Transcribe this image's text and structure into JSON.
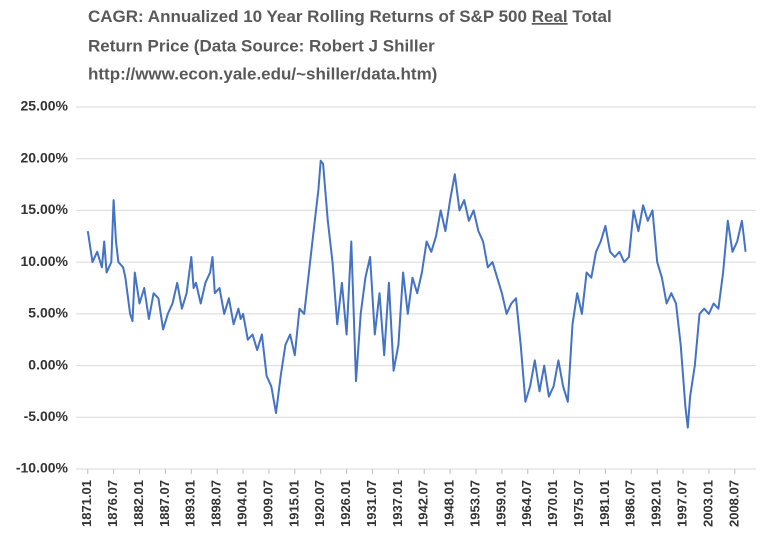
{
  "chart_data": {
    "type": "line",
    "title": [
      "CAGR: Annualized 10 Year Rolling Returns of S&P 500",
      "Real",
      "Total",
      "Return Price (Data Source: Robert J Shiller",
      "http://www.econ.yale.edu/~shiller/data.htm)"
    ],
    "x": [
      1871,
      1872,
      1873,
      1874,
      1874.5,
      1875,
      1876,
      1876.5,
      1877,
      1877.5,
      1878.5,
      1879,
      1880,
      1880.5,
      1881,
      1882,
      1883,
      1884,
      1885,
      1886,
      1887,
      1888,
      1889,
      1890,
      1891,
      1892,
      1893,
      1893.5,
      1894,
      1895,
      1896,
      1897,
      1897.5,
      1898,
      1899,
      1900,
      1901,
      1902,
      1903,
      1903.5,
      1904,
      1905,
      1906,
      1907,
      1908,
      1909,
      1910,
      1911,
      1912,
      1913,
      1914,
      1915,
      1916,
      1917,
      1918,
      1919,
      1920,
      1920.5,
      1921,
      1922,
      1923,
      1924,
      1925,
      1926,
      1927,
      1928,
      1929,
      1930,
      1931,
      1932,
      1933,
      1934,
      1935,
      1936,
      1937,
      1938,
      1939,
      1940,
      1941,
      1942,
      1943,
      1944,
      1945,
      1946,
      1947,
      1948,
      1949,
      1950,
      1951,
      1952,
      1953,
      1954,
      1955,
      1956,
      1957,
      1958,
      1959,
      1960,
      1961,
      1962,
      1963,
      1964,
      1965,
      1966,
      1967,
      1968,
      1969,
      1970,
      1971,
      1972,
      1973,
      1974,
      1975,
      1976,
      1977,
      1978,
      1979,
      1980,
      1981,
      1982,
      1983,
      1984,
      1985,
      1986,
      1987,
      1988,
      1989,
      1990,
      1991,
      1992,
      1993,
      1994,
      1995,
      1996,
      1997,
      1998,
      1998.5,
      1999,
      2000,
      2001,
      2002,
      2003,
      2004,
      2005,
      2006,
      2007,
      2008,
      2009,
      2010,
      2010.8
    ],
    "series": [
      {
        "name": "CAGR",
        "color": "#4472c4",
        "values": [
          13,
          10,
          11,
          9.5,
          12,
          9,
          10,
          16,
          12,
          10,
          9.5,
          8.5,
          5,
          4.3,
          9,
          6,
          7.5,
          4.5,
          7,
          6.5,
          3.5,
          5,
          6,
          8,
          5.5,
          7,
          10.5,
          7.5,
          8,
          6,
          8,
          9,
          10.5,
          7,
          7.5,
          5,
          6.5,
          4,
          5.5,
          4.5,
          5,
          2.5,
          3,
          1.5,
          3,
          -1,
          -2,
          -4.6,
          -1,
          2,
          3,
          1,
          5.5,
          5,
          9,
          13,
          17,
          19.8,
          19.5,
          14,
          10,
          4,
          8,
          3,
          12,
          -1.5,
          5,
          8.5,
          10.5,
          3,
          7,
          1,
          8,
          -0.5,
          2,
          9,
          5,
          8.5,
          7,
          9,
          12,
          11,
          12.5,
          15,
          13,
          16,
          18.5,
          15,
          16,
          14,
          15,
          13,
          12,
          9.5,
          10,
          8.5,
          7,
          5,
          6,
          6.5,
          2,
          -3.5,
          -2,
          0.5,
          -2.5,
          0,
          -3,
          -2,
          0.5,
          -2,
          -3.5,
          4,
          7,
          5,
          9,
          8.5,
          11,
          12,
          13.5,
          11,
          10.5,
          11,
          10,
          10.5,
          15,
          13,
          15.5,
          14,
          15,
          10,
          8.5,
          6,
          7,
          6,
          2,
          -4,
          -6,
          -3,
          0,
          5,
          5.5,
          5,
          6,
          5.5,
          9,
          14,
          11,
          12,
          14,
          11
        ]
      }
    ],
    "xlim": [
      1868.5,
      2013
    ],
    "xticks": [
      {
        "value": 1871,
        "label": "1871.01"
      },
      {
        "value": 1876.5,
        "label": "1876.07"
      },
      {
        "value": 1882,
        "label": "1882.01"
      },
      {
        "value": 1887.5,
        "label": "1887.07"
      },
      {
        "value": 1893,
        "label": "1893.01"
      },
      {
        "value": 1898.5,
        "label": "1898.07"
      },
      {
        "value": 1904,
        "label": "1904.01"
      },
      {
        "value": 1909.5,
        "label": "1909.07"
      },
      {
        "value": 1915,
        "label": "1915.01"
      },
      {
        "value": 1920.5,
        "label": "1920.07"
      },
      {
        "value": 1926,
        "label": "1926.01"
      },
      {
        "value": 1931.5,
        "label": "1931.07"
      },
      {
        "value": 1937,
        "label": "1937.01"
      },
      {
        "value": 1942.5,
        "label": "1942.07"
      },
      {
        "value": 1948,
        "label": "1948.01"
      },
      {
        "value": 1953.5,
        "label": "1953.07"
      },
      {
        "value": 1959,
        "label": "1959.01"
      },
      {
        "value": 1964.5,
        "label": "1964.07"
      },
      {
        "value": 1970,
        "label": "1970.01"
      },
      {
        "value": 1975.5,
        "label": "1975.07"
      },
      {
        "value": 1981,
        "label": "1981.01"
      },
      {
        "value": 1986.5,
        "label": "1986.07"
      },
      {
        "value": 1992,
        "label": "1992.01"
      },
      {
        "value": 1997.5,
        "label": "1997.07"
      },
      {
        "value": 2003,
        "label": "2003.01"
      },
      {
        "value": 2008.5,
        "label": "2008.07"
      }
    ],
    "ylim": [
      -10,
      25
    ],
    "yticks": [
      {
        "value": -10,
        "label": "-10.00%"
      },
      {
        "value": -5,
        "label": "-5.00%"
      },
      {
        "value": 0,
        "label": "0.00%"
      },
      {
        "value": 5,
        "label": "5.00%"
      },
      {
        "value": 10,
        "label": "10.00%"
      },
      {
        "value": 15,
        "label": "15.00%"
      },
      {
        "value": 20,
        "label": "20.00%"
      },
      {
        "value": 25,
        "label": "25.00%"
      }
    ],
    "grid": true
  }
}
